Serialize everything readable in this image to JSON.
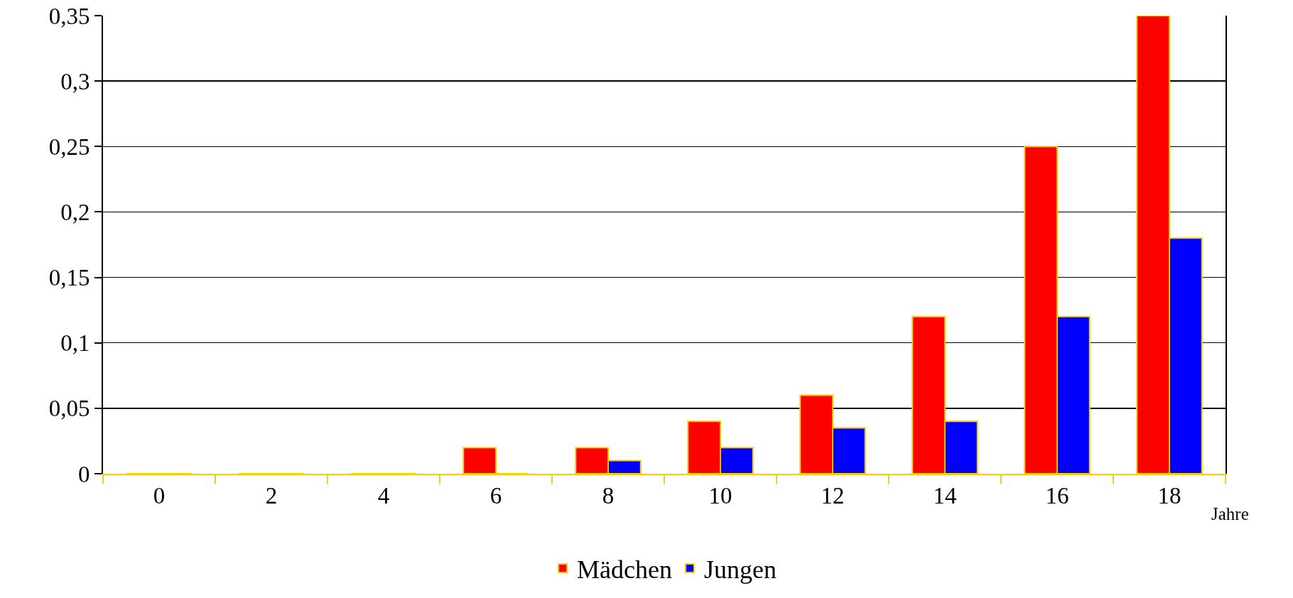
{
  "chart_data": {
    "type": "bar",
    "categories": [
      "0",
      "2",
      "4",
      "6",
      "8",
      "10",
      "12",
      "14",
      "16",
      "18"
    ],
    "series": [
      {
        "name": "Mädchen",
        "color": "#ff0000",
        "values": [
          0,
          0,
          0,
          0.02,
          0.02,
          0.04,
          0.06,
          0.12,
          0.25,
          0.35
        ]
      },
      {
        "name": "Jungen",
        "color": "#0000ff",
        "values": [
          0,
          0,
          0,
          0,
          0.01,
          0.02,
          0.035,
          0.04,
          0.12,
          0.18
        ]
      }
    ],
    "xlabel": "Jahre",
    "ylim": [
      0,
      0.35
    ],
    "yticks": [
      0,
      {
        "value": 0.05,
        "label": "0,05"
      },
      {
        "value": 0.1,
        "label": "0,1"
      },
      {
        "value": 0.15,
        "label": "0,15"
      },
      {
        "value": 0.2,
        "label": "0,2"
      },
      {
        "value": 0.25,
        "label": "0,25"
      },
      {
        "value": 0.3,
        "label": "0,3"
      },
      {
        "value": 0.35,
        "label": "0,35"
      }
    ],
    "grid": "y",
    "legend": "bottom"
  }
}
